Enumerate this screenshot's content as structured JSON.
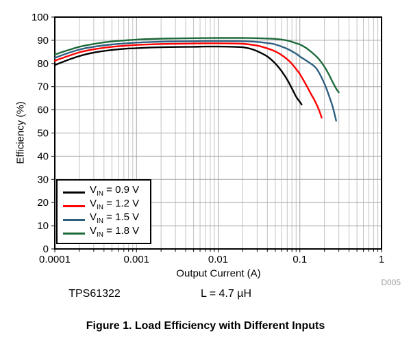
{
  "caption": "Figure 1. Load Efficiency with Different Inputs",
  "annotations": {
    "device": "TPS61322",
    "inductor": "L = 4.7 µH",
    "plot_id": "D005"
  },
  "chart_data": {
    "type": "line",
    "title": "",
    "xlabel": "Output Current (A)",
    "ylabel": "Efficiency (%)",
    "x_scale": "log",
    "xlim": [
      0.0001,
      1
    ],
    "ylim": [
      0,
      100
    ],
    "grid": true,
    "grid_major_color": "#a6a6a6",
    "grid_minor_color": "#c2c2c2",
    "frame_color": "#000000",
    "legend_position": "bottom-left",
    "x_ticks": [
      {
        "v": 0.0001,
        "label": "0.0001"
      },
      {
        "v": 0.001,
        "label": "0.001"
      },
      {
        "v": 0.01,
        "label": "0.01"
      },
      {
        "v": 0.1,
        "label": "0.1"
      },
      {
        "v": 1,
        "label": "1"
      }
    ],
    "y_ticks": [
      "0",
      "10",
      "20",
      "30",
      "40",
      "50",
      "60",
      "70",
      "80",
      "90",
      "100"
    ],
    "series": [
      {
        "label": "VIN = 0.9 V",
        "name_prefix": "V",
        "name_sub": "IN",
        "name_rest": "= 0.9 V",
        "color": "#000000",
        "points": [
          [
            0.0001,
            79.3
          ],
          [
            0.00013,
            80.9
          ],
          [
            0.0002,
            83.2
          ],
          [
            0.0003,
            84.7
          ],
          [
            0.0005,
            85.8
          ],
          [
            0.0007,
            86.3
          ],
          [
            0.001,
            86.6
          ],
          [
            0.0015,
            86.9
          ],
          [
            0.002,
            87.0
          ],
          [
            0.003,
            87.1
          ],
          [
            0.005,
            87.2
          ],
          [
            0.007,
            87.3
          ],
          [
            0.01,
            87.3
          ],
          [
            0.015,
            87.2
          ],
          [
            0.02,
            87.0
          ],
          [
            0.025,
            86.3
          ],
          [
            0.03,
            85.3
          ],
          [
            0.04,
            83.0
          ],
          [
            0.05,
            80.0
          ],
          [
            0.06,
            76.6
          ],
          [
            0.07,
            73.0
          ],
          [
            0.08,
            69.2
          ],
          [
            0.09,
            65.7
          ],
          [
            0.1,
            63.4
          ],
          [
            0.105,
            62.3
          ]
        ]
      },
      {
        "label": "VIN = 1.2 V",
        "name_prefix": "V",
        "name_sub": "IN",
        "name_rest": "= 1.2 V",
        "color": "#ff0000",
        "points": [
          [
            0.0001,
            81.2
          ],
          [
            0.00013,
            82.6
          ],
          [
            0.0002,
            84.8
          ],
          [
            0.0003,
            86.1
          ],
          [
            0.0005,
            87.2
          ],
          [
            0.0007,
            87.6
          ],
          [
            0.001,
            88.0
          ],
          [
            0.002,
            88.4
          ],
          [
            0.003,
            88.5
          ],
          [
            0.005,
            88.6
          ],
          [
            0.007,
            88.7
          ],
          [
            0.01,
            88.7
          ],
          [
            0.015,
            88.6
          ],
          [
            0.02,
            88.5
          ],
          [
            0.03,
            87.7
          ],
          [
            0.04,
            86.5
          ],
          [
            0.05,
            85.2
          ],
          [
            0.06,
            83.6
          ],
          [
            0.07,
            81.8
          ],
          [
            0.08,
            79.8
          ],
          [
            0.09,
            77.6
          ],
          [
            0.1,
            75.4
          ],
          [
            0.12,
            70.6
          ],
          [
            0.14,
            66.2
          ],
          [
            0.15,
            64.4
          ],
          [
            0.17,
            60.3
          ],
          [
            0.185,
            56.6
          ]
        ]
      },
      {
        "label": "VIN = 1.5 V",
        "name_prefix": "V",
        "name_sub": "IN",
        "name_rest": "= 1.5 V",
        "color": "#2e5f80",
        "points": [
          [
            0.0001,
            82.4
          ],
          [
            0.00013,
            83.9
          ],
          [
            0.0002,
            86.0
          ],
          [
            0.0003,
            87.2
          ],
          [
            0.0005,
            88.2
          ],
          [
            0.0007,
            88.6
          ],
          [
            0.001,
            89.0
          ],
          [
            0.002,
            89.4
          ],
          [
            0.003,
            89.5
          ],
          [
            0.005,
            89.6
          ],
          [
            0.007,
            89.7
          ],
          [
            0.01,
            89.7
          ],
          [
            0.02,
            89.6
          ],
          [
            0.03,
            89.3
          ],
          [
            0.04,
            88.8
          ],
          [
            0.05,
            88.2
          ],
          [
            0.07,
            86.3
          ],
          [
            0.09,
            84.2
          ],
          [
            0.1,
            83.0
          ],
          [
            0.12,
            81.2
          ],
          [
            0.15,
            78.8
          ],
          [
            0.17,
            76.3
          ],
          [
            0.2,
            71.3
          ],
          [
            0.22,
            67.5
          ],
          [
            0.25,
            61.8
          ],
          [
            0.27,
            57.2
          ],
          [
            0.278,
            55.3
          ]
        ]
      },
      {
        "label": "VIN = 1.8 V",
        "name_prefix": "V",
        "name_sub": "IN",
        "name_rest": "= 1.8 V",
        "color": "#1e6b3a",
        "points": [
          [
            0.0001,
            83.8
          ],
          [
            0.00013,
            85.2
          ],
          [
            0.0002,
            87.2
          ],
          [
            0.0003,
            88.4
          ],
          [
            0.0005,
            89.5
          ],
          [
            0.0007,
            89.9
          ],
          [
            0.001,
            90.3
          ],
          [
            0.002,
            90.7
          ],
          [
            0.003,
            90.8
          ],
          [
            0.005,
            90.9
          ],
          [
            0.01,
            91.0
          ],
          [
            0.02,
            91.0
          ],
          [
            0.03,
            90.9
          ],
          [
            0.05,
            90.6
          ],
          [
            0.07,
            89.9
          ],
          [
            0.09,
            88.7
          ],
          [
            0.1,
            88.2
          ],
          [
            0.12,
            86.6
          ],
          [
            0.15,
            83.9
          ],
          [
            0.17,
            82.0
          ],
          [
            0.2,
            78.6
          ],
          [
            0.23,
            74.8
          ],
          [
            0.25,
            72.2
          ],
          [
            0.28,
            69.0
          ],
          [
            0.3,
            67.5
          ]
        ]
      }
    ]
  }
}
